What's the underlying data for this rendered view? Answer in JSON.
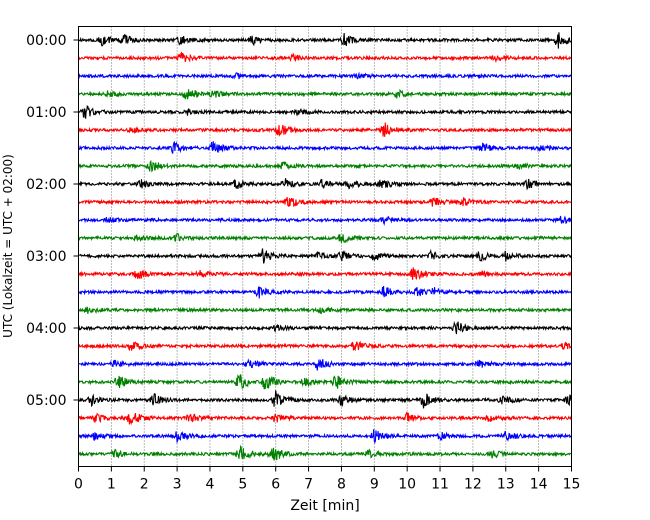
{
  "chart_data": {
    "type": "line",
    "subtype": "helicorder",
    "xlabel": "Zeit  [min]",
    "ylabel": "UTC (Lokalzeit = UTC + 02:00)",
    "xlim": [
      0,
      15
    ],
    "x_ticks": [
      0,
      1,
      2,
      3,
      4,
      5,
      6,
      7,
      8,
      9,
      10,
      11,
      12,
      13,
      14,
      15
    ],
    "y_tick_labels": [
      "00:00",
      "01:00",
      "02:00",
      "03:00",
      "04:00",
      "05:00"
    ],
    "vertical_grid": "dotted",
    "trace_interval_minutes": 15,
    "trace_colors": [
      "#000000",
      "#ff0000",
      "#0000ff",
      "#008000"
    ],
    "traces": [
      {
        "index": 0,
        "start": "00:00",
        "color": "#000000",
        "events": [
          [
            0.7,
            0.6
          ],
          [
            1.4,
            0.5
          ],
          [
            3.1,
            0.5
          ],
          [
            5.3,
            0.5
          ],
          [
            8.1,
            0.7
          ],
          [
            14.6,
            0.9
          ]
        ]
      },
      {
        "index": 1,
        "start": "00:15",
        "color": "#ff0000",
        "events": [
          [
            3.1,
            0.6
          ],
          [
            6.5,
            0.4
          ],
          [
            12.7,
            0.4
          ]
        ]
      },
      {
        "index": 2,
        "start": "00:30",
        "color": "#0000ff",
        "events": [
          [
            4.8,
            0.3
          ],
          [
            8.5,
            0.3
          ]
        ]
      },
      {
        "index": 3,
        "start": "00:45",
        "color": "#008000",
        "events": [
          [
            0.9,
            0.3
          ],
          [
            3.3,
            0.9
          ],
          [
            4.1,
            0.4
          ],
          [
            9.7,
            0.4
          ]
        ]
      },
      {
        "index": 4,
        "start": "01:00",
        "color": "#000000",
        "events": [
          [
            0.2,
            0.7
          ],
          [
            3.3,
            0.3
          ],
          [
            6.7,
            0.3
          ]
        ]
      },
      {
        "index": 5,
        "start": "01:15",
        "color": "#ff0000",
        "events": [
          [
            6.1,
            0.8
          ],
          [
            9.3,
            0.8
          ],
          [
            1.6,
            0.3
          ]
        ]
      },
      {
        "index": 6,
        "start": "01:30",
        "color": "#0000ff",
        "events": [
          [
            2.9,
            0.6
          ],
          [
            4.1,
            0.8
          ],
          [
            12.3,
            0.5
          ],
          [
            14.0,
            0.3
          ]
        ]
      },
      {
        "index": 7,
        "start": "01:45",
        "color": "#008000",
        "events": [
          [
            2.2,
            0.7
          ],
          [
            6.2,
            0.4
          ],
          [
            13.4,
            0.3
          ]
        ]
      },
      {
        "index": 8,
        "start": "02:00",
        "color": "#000000",
        "events": [
          [
            1.9,
            0.4
          ],
          [
            4.8,
            0.5
          ],
          [
            6.3,
            0.5
          ],
          [
            7.4,
            0.4
          ],
          [
            8.2,
            0.5
          ],
          [
            9.2,
            0.5
          ],
          [
            13.7,
            0.6
          ]
        ]
      },
      {
        "index": 9,
        "start": "02:15",
        "color": "#ff0000",
        "events": [
          [
            6.4,
            0.6
          ],
          [
            10.8,
            0.5
          ],
          [
            11.7,
            0.4
          ]
        ]
      },
      {
        "index": 10,
        "start": "02:30",
        "color": "#0000ff",
        "events": [
          [
            0.9,
            0.3
          ],
          [
            9.3,
            0.4
          ],
          [
            14.7,
            0.4
          ]
        ]
      },
      {
        "index": 11,
        "start": "02:45",
        "color": "#008000",
        "events": [
          [
            1.8,
            0.3
          ],
          [
            3.0,
            0.4
          ],
          [
            8.0,
            0.5
          ]
        ]
      },
      {
        "index": 12,
        "start": "03:00",
        "color": "#000000",
        "events": [
          [
            5.6,
            0.8
          ],
          [
            7.3,
            0.4
          ],
          [
            8.0,
            0.5
          ],
          [
            9.0,
            0.5
          ],
          [
            10.7,
            0.5
          ],
          [
            12.2,
            0.5
          ],
          [
            13.0,
            0.5
          ]
        ]
      },
      {
        "index": 13,
        "start": "03:15",
        "color": "#ff0000",
        "events": [
          [
            1.8,
            0.6
          ],
          [
            3.7,
            0.4
          ],
          [
            10.2,
            0.8
          ],
          [
            12.3,
            0.3
          ]
        ]
      },
      {
        "index": 14,
        "start": "03:30",
        "color": "#0000ff",
        "events": [
          [
            5.5,
            0.6
          ],
          [
            9.3,
            0.6
          ],
          [
            10.3,
            0.4
          ],
          [
            10.8,
            0.4
          ]
        ]
      },
      {
        "index": 15,
        "start": "03:45",
        "color": "#008000",
        "events": [
          [
            0.3,
            0.4
          ],
          [
            7.4,
            0.3
          ]
        ]
      },
      {
        "index": 16,
        "start": "04:00",
        "color": "#000000",
        "events": [
          [
            11.5,
            0.7
          ],
          [
            6.0,
            0.3
          ]
        ]
      },
      {
        "index": 17,
        "start": "04:15",
        "color": "#ff0000",
        "events": [
          [
            1.6,
            0.5
          ],
          [
            8.4,
            0.6
          ],
          [
            14.8,
            0.4
          ]
        ]
      },
      {
        "index": 18,
        "start": "04:30",
        "color": "#0000ff",
        "events": [
          [
            1.1,
            0.4
          ],
          [
            5.2,
            0.5
          ],
          [
            7.3,
            0.8
          ],
          [
            12.2,
            0.4
          ]
        ]
      },
      {
        "index": 19,
        "start": "04:45",
        "color": "#008000",
        "events": [
          [
            1.2,
            0.8
          ],
          [
            4.9,
            1.0
          ],
          [
            5.7,
            1.0
          ],
          [
            7.8,
            0.9
          ],
          [
            6.9,
            0.5
          ]
        ]
      },
      {
        "index": 20,
        "start": "05:00",
        "color": "#000000",
        "events": [
          [
            0.4,
            0.5
          ],
          [
            2.3,
            0.6
          ],
          [
            6.0,
            0.9
          ],
          [
            8.0,
            0.6
          ],
          [
            10.5,
            0.9
          ],
          [
            12.9,
            0.5
          ],
          [
            14.9,
            0.5
          ]
        ]
      },
      {
        "index": 21,
        "start": "05:15",
        "color": "#ff0000",
        "events": [
          [
            0.5,
            0.5
          ],
          [
            1.6,
            0.9
          ],
          [
            3.4,
            0.5
          ],
          [
            6.0,
            0.5
          ],
          [
            10.0,
            0.5
          ],
          [
            12.5,
            0.4
          ]
        ]
      },
      {
        "index": 22,
        "start": "05:30",
        "color": "#0000ff",
        "events": [
          [
            0.5,
            0.4
          ],
          [
            3.0,
            0.5
          ],
          [
            9.0,
            0.9
          ],
          [
            11.0,
            0.4
          ],
          [
            13.0,
            0.6
          ]
        ]
      },
      {
        "index": 23,
        "start": "05:45",
        "color": "#008000",
        "events": [
          [
            1.1,
            0.4
          ],
          [
            4.9,
            0.9
          ],
          [
            5.9,
            1.0
          ],
          [
            8.8,
            0.4
          ],
          [
            12.6,
            0.4
          ]
        ]
      }
    ]
  }
}
